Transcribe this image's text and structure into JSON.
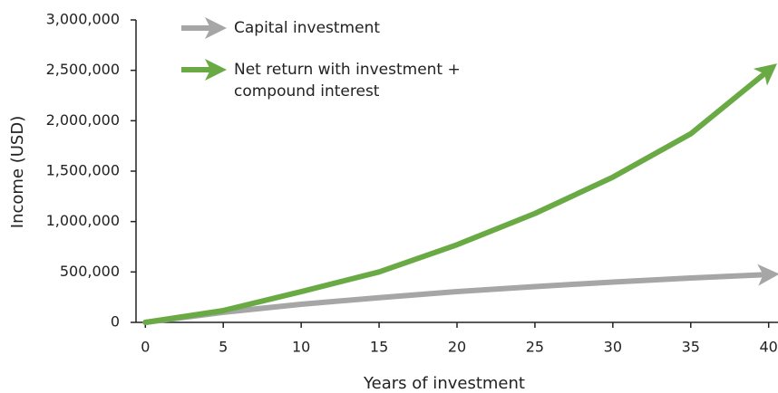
{
  "chart_data": {
    "type": "line",
    "x_label": "Years of investment",
    "y_label": "Income (USD)",
    "x": [
      0,
      5,
      10,
      15,
      20,
      25,
      30,
      35,
      40
    ],
    "series": [
      {
        "name": "Capital investment",
        "color": "#a6a6a6",
        "values": [
          0,
          100000,
          180000,
          245000,
          305000,
          355000,
          400000,
          440000,
          475000
        ]
      },
      {
        "name": "Net return with investment + compound interest",
        "color": "#6aaa45",
        "values": [
          0,
          117000,
          305000,
          500000,
          770000,
          1080000,
          1440000,
          1870000,
          2500000
        ]
      }
    ],
    "xlim": [
      -0.6,
      40.6
    ],
    "xticks": [
      0,
      5,
      10,
      15,
      20,
      25,
      30,
      35,
      40
    ],
    "ylim": [
      0,
      3000000
    ],
    "yticks": [
      0,
      {
        "value": 500000,
        "label": "500,000"
      },
      {
        "value": 1000000,
        "label": "1,000,000"
      },
      {
        "value": 1500000,
        "label": "1,500,000"
      },
      {
        "value": 2000000,
        "label": "2,000,000"
      },
      {
        "value": 2500000,
        "label": "2,500,000"
      },
      {
        "value": 3000000,
        "label": "3,000,000"
      }
    ],
    "grid": false,
    "legend": "upper left"
  }
}
